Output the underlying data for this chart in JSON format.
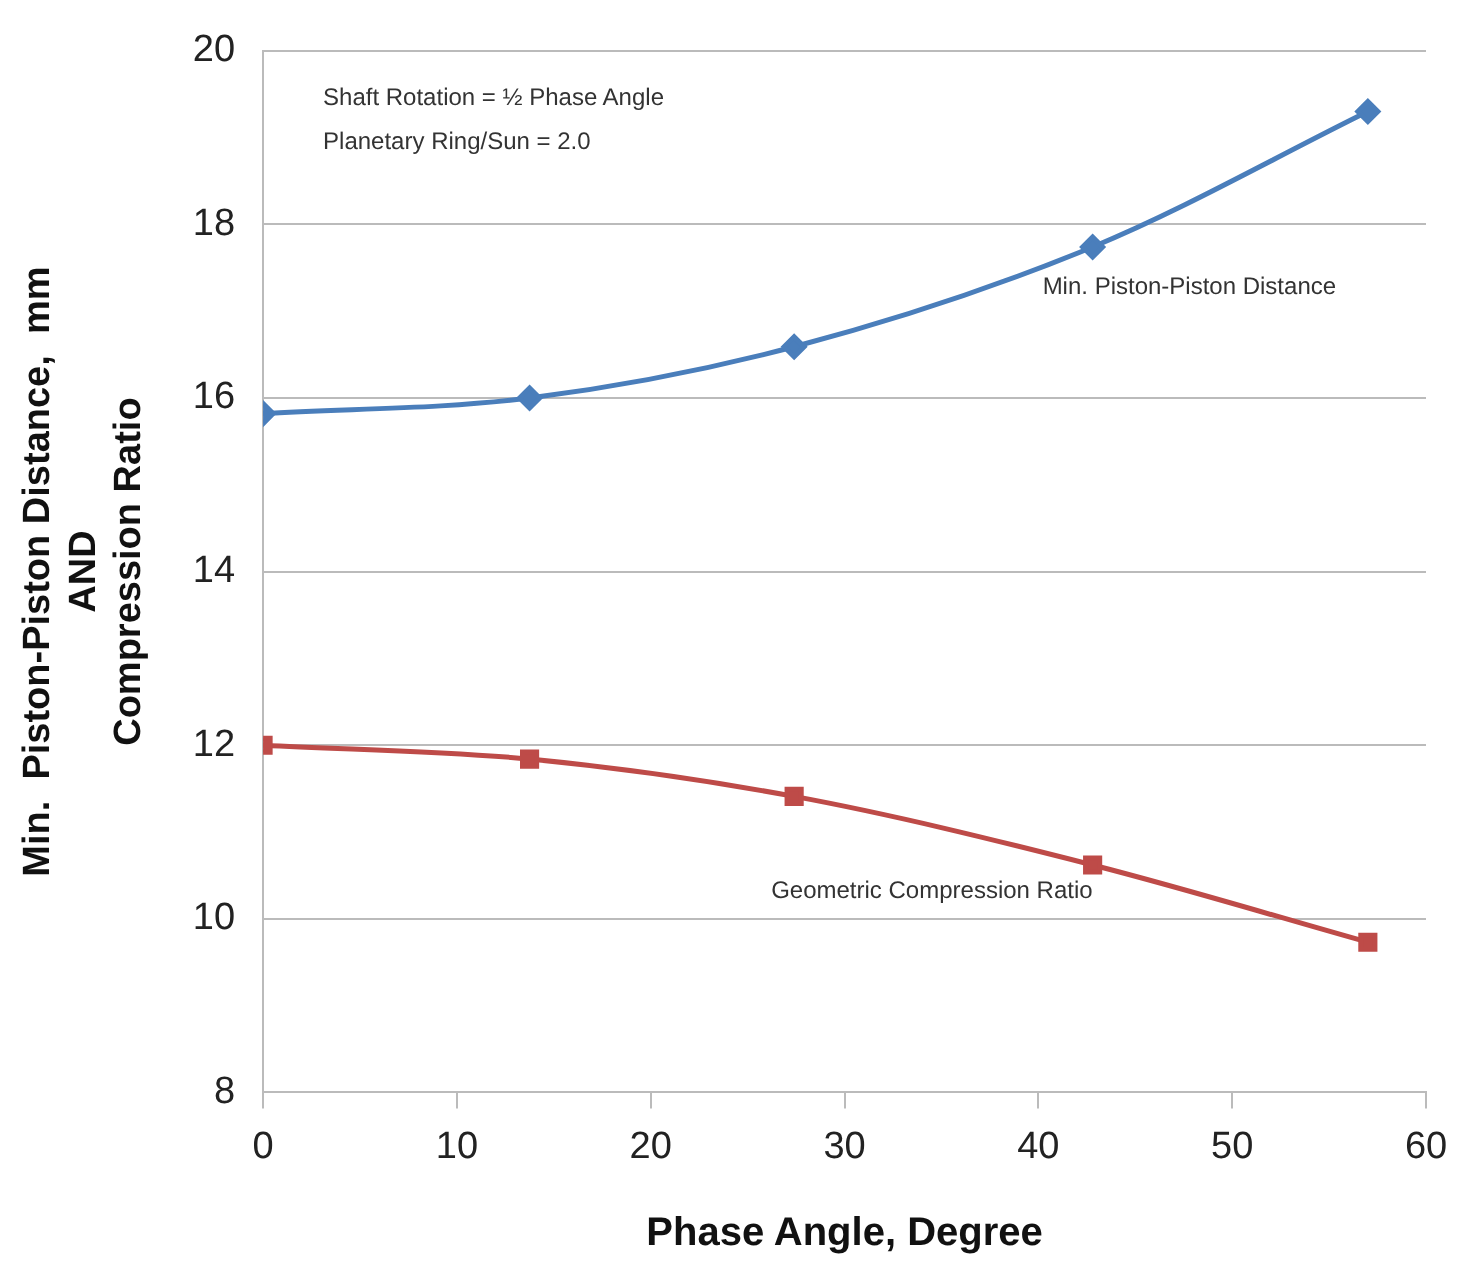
{
  "chart_data": {
    "type": "line",
    "xlabel": "Phase Angle, Degree",
    "ylabel": "Min.  Piston-Piston Distance,  mm\nAND\nCompression Ratio",
    "annotations": [
      "Shaft Rotation = ½ Phase Angle",
      "Planetary Ring/Sun = 2.0"
    ],
    "x": [
      0,
      13.75,
      27.4,
      42.8,
      57.0
    ],
    "series": [
      {
        "name": "Min. Piston-Piston Distance",
        "color": "#4a7ebb",
        "marker": "diamond",
        "values": [
          15.82,
          16.0,
          16.59,
          17.74,
          19.3
        ]
      },
      {
        "name": "Geometric Compression Ratio",
        "color": "#be4b48",
        "marker": "square",
        "values": [
          12.0,
          11.84,
          11.41,
          10.62,
          9.73
        ]
      }
    ],
    "xlim": [
      0,
      60
    ],
    "xticks": [
      0,
      10,
      20,
      30,
      40,
      50,
      60
    ],
    "ylim": [
      8,
      20
    ],
    "yticks": [
      8,
      10,
      12,
      14,
      16,
      18,
      20
    ],
    "grid": "y",
    "legend": false
  }
}
